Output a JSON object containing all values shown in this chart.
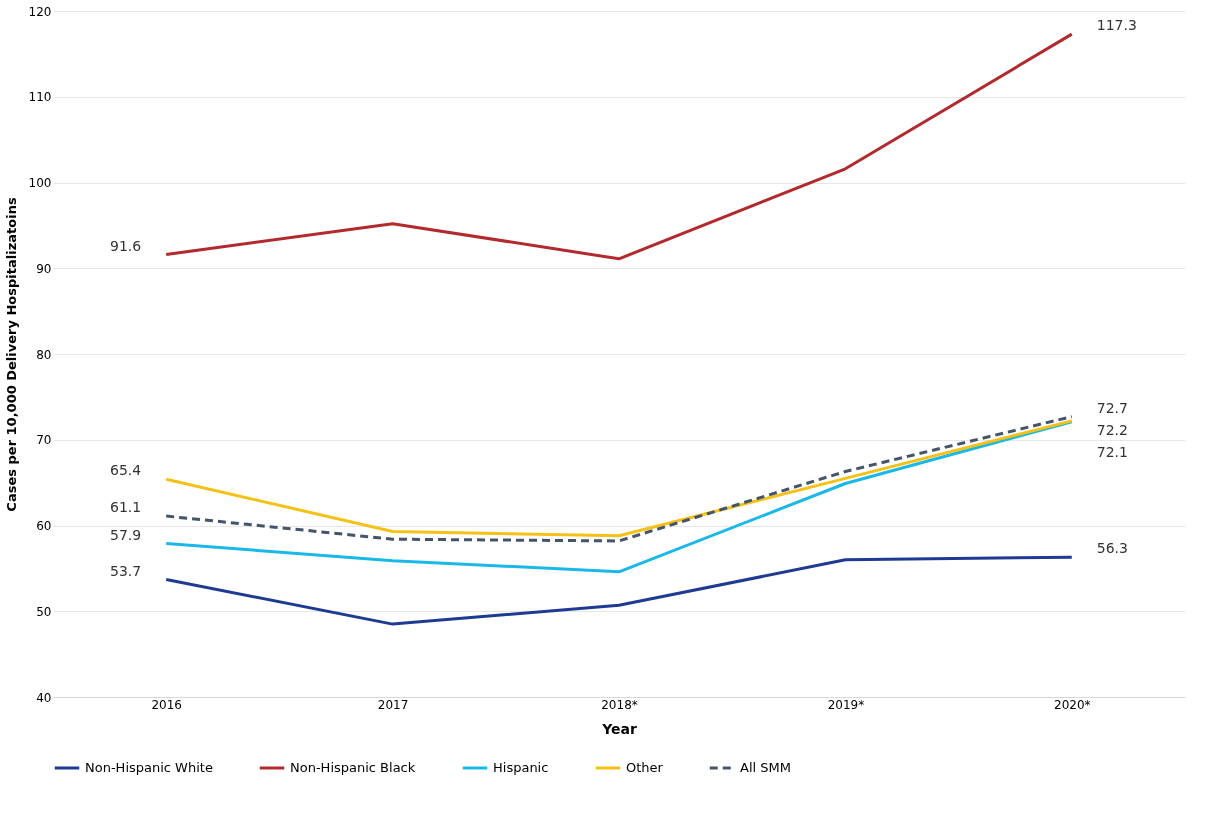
{
  "chart_data": {
    "type": "line",
    "xlabel": "Year",
    "ylabel": "Cases per 10,000 Delivery Hospitalizatoins",
    "categories": [
      "2016",
      "2017",
      "2018*",
      "2019*",
      "2020*"
    ],
    "ylim": [
      40,
      120
    ],
    "yticks": [
      40,
      50,
      60,
      70,
      80,
      90,
      100,
      110,
      120
    ],
    "grid": "y",
    "legend": "bottom",
    "marker": "none",
    "series": [
      {
        "name": "Non-Hispanic White",
        "color": "#1f3a93",
        "line_style": "solid",
        "values": [
          53.7,
          48.5,
          50.7,
          56.0,
          56.3
        ],
        "value_labels": [
          "53.7",
          null,
          null,
          null,
          "56.3"
        ]
      },
      {
        "name": "Non-Hispanic Black",
        "color": "#b22a2e",
        "line_style": "solid",
        "values": [
          91.6,
          95.2,
          91.1,
          101.6,
          117.3
        ],
        "value_labels": [
          "91.6",
          null,
          null,
          null,
          "117.3"
        ]
      },
      {
        "name": "Hispanic",
        "color": "#1ab8e8",
        "line_style": "solid",
        "values": [
          57.9,
          55.9,
          54.6,
          64.9,
          72.1
        ],
        "value_labels": [
          "57.9",
          null,
          null,
          null,
          "72.1"
        ]
      },
      {
        "name": "Other",
        "color": "#f5c116",
        "line_style": "solid",
        "values": [
          65.4,
          59.3,
          58.8,
          65.5,
          72.2
        ],
        "value_labels": [
          "65.4",
          null,
          null,
          null,
          "72.2"
        ]
      },
      {
        "name": "All SMM",
        "color": "#44546a",
        "line_style": "dashed",
        "values": [
          61.1,
          58.4,
          58.2,
          66.3,
          72.7
        ],
        "value_labels": [
          "61.1",
          null,
          null,
          null,
          "72.7"
        ]
      }
    ]
  }
}
